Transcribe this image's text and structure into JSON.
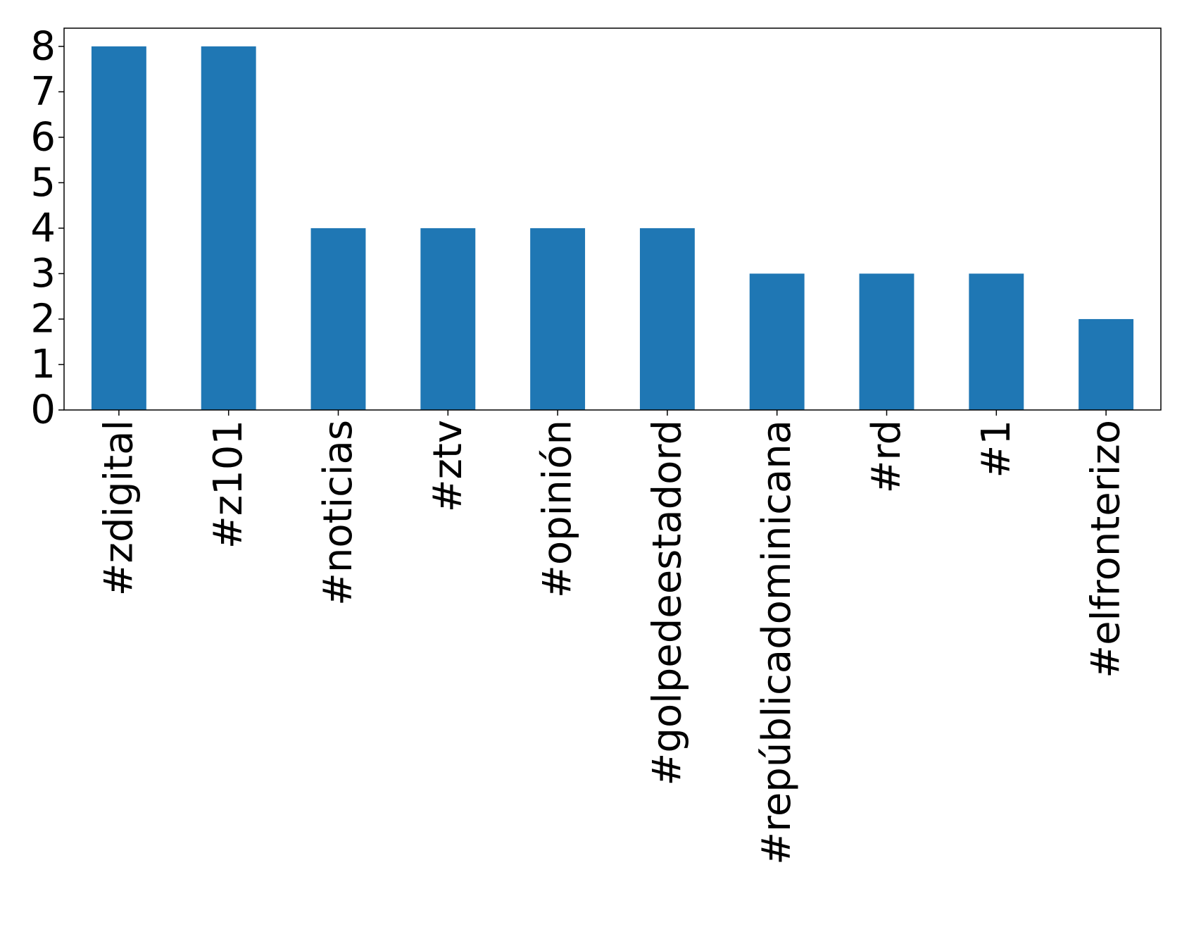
{
  "chart_data": {
    "type": "bar",
    "categories": [
      "#zdigital",
      "#z101",
      "#noticias",
      "#ztv",
      "#opinión",
      "#golpedeestadord",
      "#repúblicadominicana",
      "#rd",
      "#1",
      "#elfronterizo"
    ],
    "values": [
      8,
      8,
      4,
      4,
      4,
      4,
      3,
      3,
      3,
      2
    ],
    "title": "",
    "xlabel": "",
    "ylabel": "",
    "ylim": [
      0,
      8.4
    ],
    "yticks": [
      "0",
      "1",
      "2",
      "3",
      "4",
      "5",
      "6",
      "7",
      "8"
    ],
    "grid": false,
    "legend": "none",
    "bar_color": "#1f77b4"
  }
}
